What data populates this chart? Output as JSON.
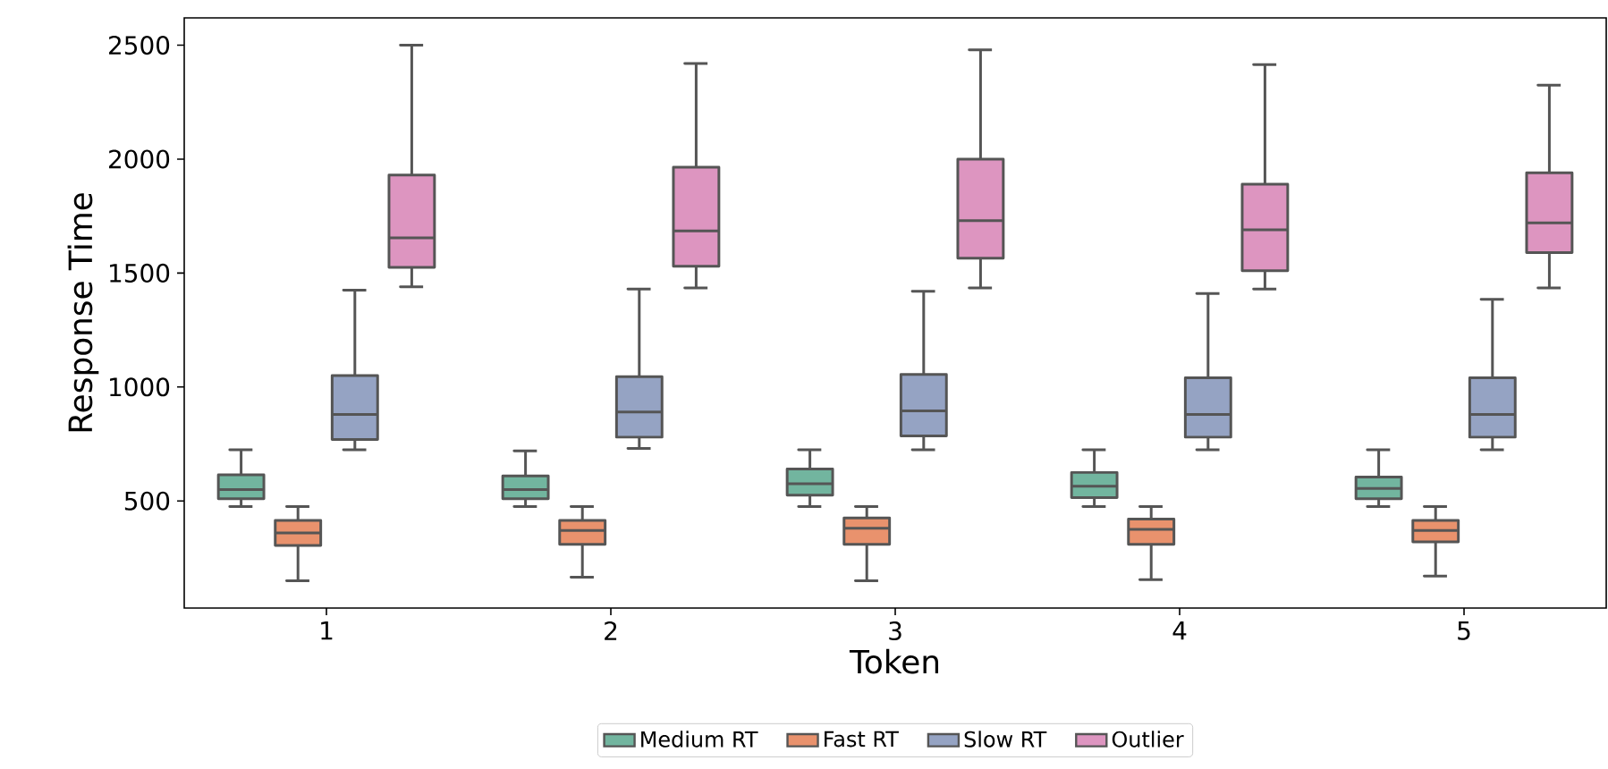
{
  "chart_data": {
    "type": "box",
    "xlabel": "Token",
    "ylabel": "Response Time",
    "categories": [
      "1",
      "2",
      "3",
      "4",
      "5"
    ],
    "ylim": [
      30,
      2620
    ],
    "yticks": [
      500,
      1000,
      1500,
      2000,
      2500
    ],
    "legend": "bottom",
    "grid": false,
    "series": [
      {
        "name": "Medium RT",
        "color": "#72b59f",
        "boxes": [
          {
            "low": 475,
            "q1": 510,
            "median": 550,
            "q3": 615,
            "high": 725
          },
          {
            "low": 475,
            "q1": 510,
            "median": 550,
            "q3": 610,
            "high": 720
          },
          {
            "low": 475,
            "q1": 525,
            "median": 575,
            "q3": 640,
            "high": 725
          },
          {
            "low": 475,
            "q1": 515,
            "median": 565,
            "q3": 625,
            "high": 725
          },
          {
            "low": 475,
            "q1": 510,
            "median": 555,
            "q3": 605,
            "high": 725
          }
        ]
      },
      {
        "name": "Fast RT",
        "color": "#e9926d",
        "boxes": [
          {
            "low": 150,
            "q1": 305,
            "median": 360,
            "q3": 415,
            "high": 475
          },
          {
            "low": 165,
            "q1": 310,
            "median": 370,
            "q3": 415,
            "high": 475
          },
          {
            "low": 150,
            "q1": 310,
            "median": 380,
            "q3": 425,
            "high": 475
          },
          {
            "low": 155,
            "q1": 310,
            "median": 375,
            "q3": 420,
            "high": 475
          },
          {
            "low": 170,
            "q1": 320,
            "median": 370,
            "q3": 415,
            "high": 475
          }
        ]
      },
      {
        "name": "Slow RT",
        "color": "#95a3c3",
        "boxes": [
          {
            "low": 725,
            "q1": 770,
            "median": 880,
            "q3": 1050,
            "high": 1425
          },
          {
            "low": 730,
            "q1": 780,
            "median": 890,
            "q3": 1045,
            "high": 1430
          },
          {
            "low": 725,
            "q1": 785,
            "median": 895,
            "q3": 1055,
            "high": 1420
          },
          {
            "low": 725,
            "q1": 780,
            "median": 880,
            "q3": 1040,
            "high": 1410
          },
          {
            "low": 725,
            "q1": 780,
            "median": 880,
            "q3": 1040,
            "high": 1385
          }
        ]
      },
      {
        "name": "Outlier",
        "color": "#dd95c0",
        "boxes": [
          {
            "low": 1440,
            "q1": 1525,
            "median": 1655,
            "q3": 1930,
            "high": 2500
          },
          {
            "low": 1435,
            "q1": 1530,
            "median": 1685,
            "q3": 1965,
            "high": 2420
          },
          {
            "low": 1435,
            "q1": 1565,
            "median": 1730,
            "q3": 2000,
            "high": 2480
          },
          {
            "low": 1430,
            "q1": 1510,
            "median": 1690,
            "q3": 1890,
            "high": 2415
          },
          {
            "low": 1435,
            "q1": 1590,
            "median": 1720,
            "q3": 1940,
            "high": 2325
          }
        ]
      }
    ]
  }
}
